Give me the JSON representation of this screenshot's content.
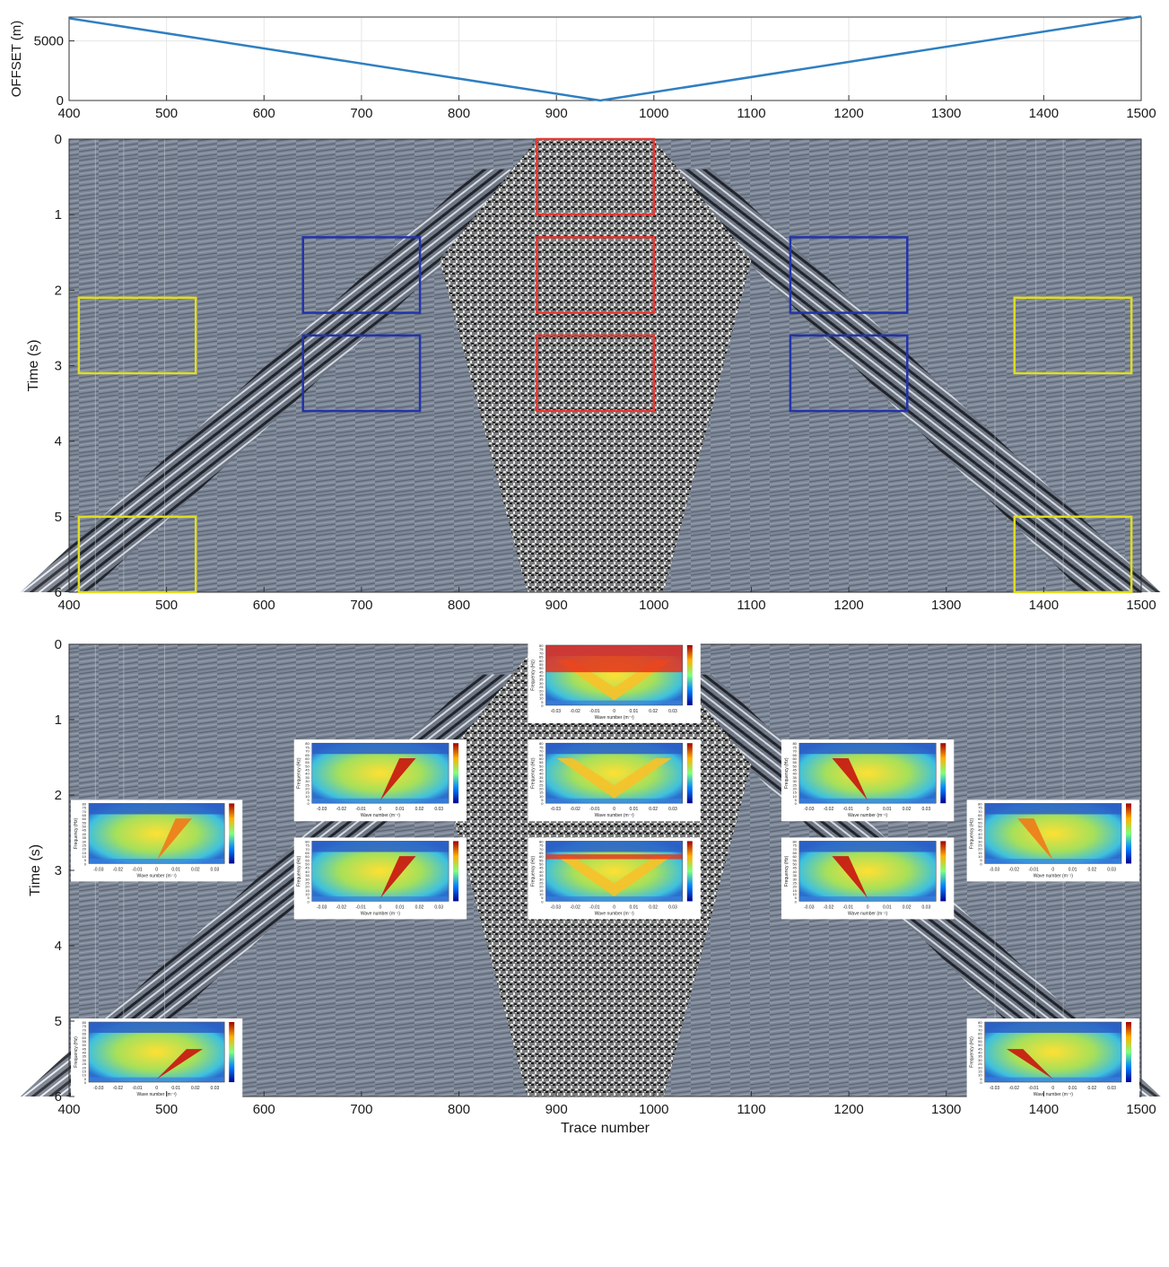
{
  "chart_data": [
    {
      "type": "line",
      "ylabel": "OFFSET (m)",
      "xlim": [
        400,
        1500
      ],
      "ylim": [
        0,
        7000
      ],
      "xticks": [
        400,
        500,
        600,
        700,
        800,
        900,
        1000,
        1100,
        1200,
        1300,
        1400,
        1500
      ],
      "yticks": [
        0,
        5000
      ],
      "grid": true,
      "series": [
        {
          "x": [
            400,
            945,
            1500
          ],
          "y": [
            6900,
            0,
            7050
          ],
          "color": "#2f7fc1"
        }
      ]
    },
    {
      "type": "heatmap",
      "ylabel": "Time (s)",
      "xlim": [
        400,
        1500
      ],
      "ylim": [
        6,
        0
      ],
      "xticks": [
        400,
        500,
        600,
        700,
        800,
        900,
        1000,
        1100,
        1200,
        1300,
        1400,
        1500
      ],
      "yticks": [
        0,
        1,
        2,
        3,
        4,
        5,
        6
      ],
      "grid": false,
      "colormap": "grayscale seismic (blue-gray background)",
      "analysis_windows": [
        {
          "color": "#e53935",
          "x": [
            880,
            1000
          ],
          "y": [
            0,
            1
          ]
        },
        {
          "color": "#e53935",
          "x": [
            880,
            1000
          ],
          "y": [
            1.3,
            2.3
          ]
        },
        {
          "color": "#e53935",
          "x": [
            880,
            1000
          ],
          "y": [
            2.6,
            3.6
          ]
        },
        {
          "color": "#2233aa",
          "x": [
            640,
            760
          ],
          "y": [
            1.3,
            2.3
          ]
        },
        {
          "color": "#2233aa",
          "x": [
            640,
            760
          ],
          "y": [
            2.6,
            3.6
          ]
        },
        {
          "color": "#2233aa",
          "x": [
            1140,
            1260
          ],
          "y": [
            1.3,
            2.3
          ]
        },
        {
          "color": "#2233aa",
          "x": [
            1140,
            1260
          ],
          "y": [
            2.6,
            3.6
          ]
        },
        {
          "color": "#e0dd22",
          "x": [
            410,
            530
          ],
          "y": [
            2.1,
            3.1
          ]
        },
        {
          "color": "#e0dd22",
          "x": [
            410,
            530
          ],
          "y": [
            5,
            6
          ]
        },
        {
          "color": "#e0dd22",
          "x": [
            1370,
            1490
          ],
          "y": [
            2.1,
            3.1
          ]
        },
        {
          "color": "#e0dd22",
          "x": [
            1370,
            1490
          ],
          "y": [
            5,
            6
          ]
        }
      ]
    },
    {
      "type": "heatmap",
      "xlabel": "Trace number",
      "ylabel": "Time (s)",
      "xlim": [
        400,
        1500
      ],
      "ylim": [
        6,
        0
      ],
      "xticks": [
        400,
        500,
        600,
        700,
        800,
        900,
        1000,
        1100,
        1200,
        1300,
        1400,
        1500
      ],
      "yticks": [
        0,
        1,
        2,
        3,
        4,
        5,
        6
      ],
      "grid": false,
      "colormap": "grayscale seismic (blue-gray background)",
      "fk_spectra_insets": {
        "colormap": "jet",
        "inset_xlabel": "Wave number (m⁻¹)",
        "inset_ylabel": "Frequency (Hz)",
        "inset_xticks": [
          "-0.03",
          "-0.02",
          "-0.01",
          "0",
          "0.01",
          "0.02",
          "0.03"
        ],
        "inset_yticks": [
          "0",
          "5",
          "10",
          "15",
          "20",
          "25",
          "30",
          "35",
          "40",
          "45",
          "50",
          "55",
          "60",
          "65",
          "70",
          "75",
          "80"
        ],
        "windows": [
          {
            "x": [
              880,
              1000
            ],
            "y": [
              0,
              1
            ],
            "pattern": "high-energy upper band with V"
          },
          {
            "x": [
              880,
              1000
            ],
            "y": [
              1.3,
              2.3
            ],
            "pattern": "V shape"
          },
          {
            "x": [
              880,
              1000
            ],
            "y": [
              2.6,
              3.6
            ],
            "pattern": "V shape with red band"
          },
          {
            "x": [
              640,
              760
            ],
            "y": [
              1.3,
              2.3
            ],
            "pattern": "positive-k streak"
          },
          {
            "x": [
              640,
              760
            ],
            "y": [
              2.6,
              3.6
            ],
            "pattern": "positive-k streak"
          },
          {
            "x": [
              1140,
              1260
            ],
            "y": [
              1.3,
              2.3
            ],
            "pattern": "negative-k streak"
          },
          {
            "x": [
              1140,
              1260
            ],
            "y": [
              2.6,
              3.6
            ],
            "pattern": "negative-k streak"
          },
          {
            "x": [
              410,
              530
            ],
            "y": [
              2.1,
              3.1
            ],
            "pattern": "weak positive-k streak"
          },
          {
            "x": [
              410,
              530
            ],
            "y": [
              5,
              6
            ],
            "pattern": "low-frequency positive-k streak"
          },
          {
            "x": [
              1370,
              1490
            ],
            "y": [
              2.1,
              3.1
            ],
            "pattern": "weak negative-k streak"
          },
          {
            "x": [
              1370,
              1490
            ],
            "y": [
              5,
              6
            ],
            "pattern": "low-frequency negative-k streak"
          }
        ]
      }
    }
  ]
}
